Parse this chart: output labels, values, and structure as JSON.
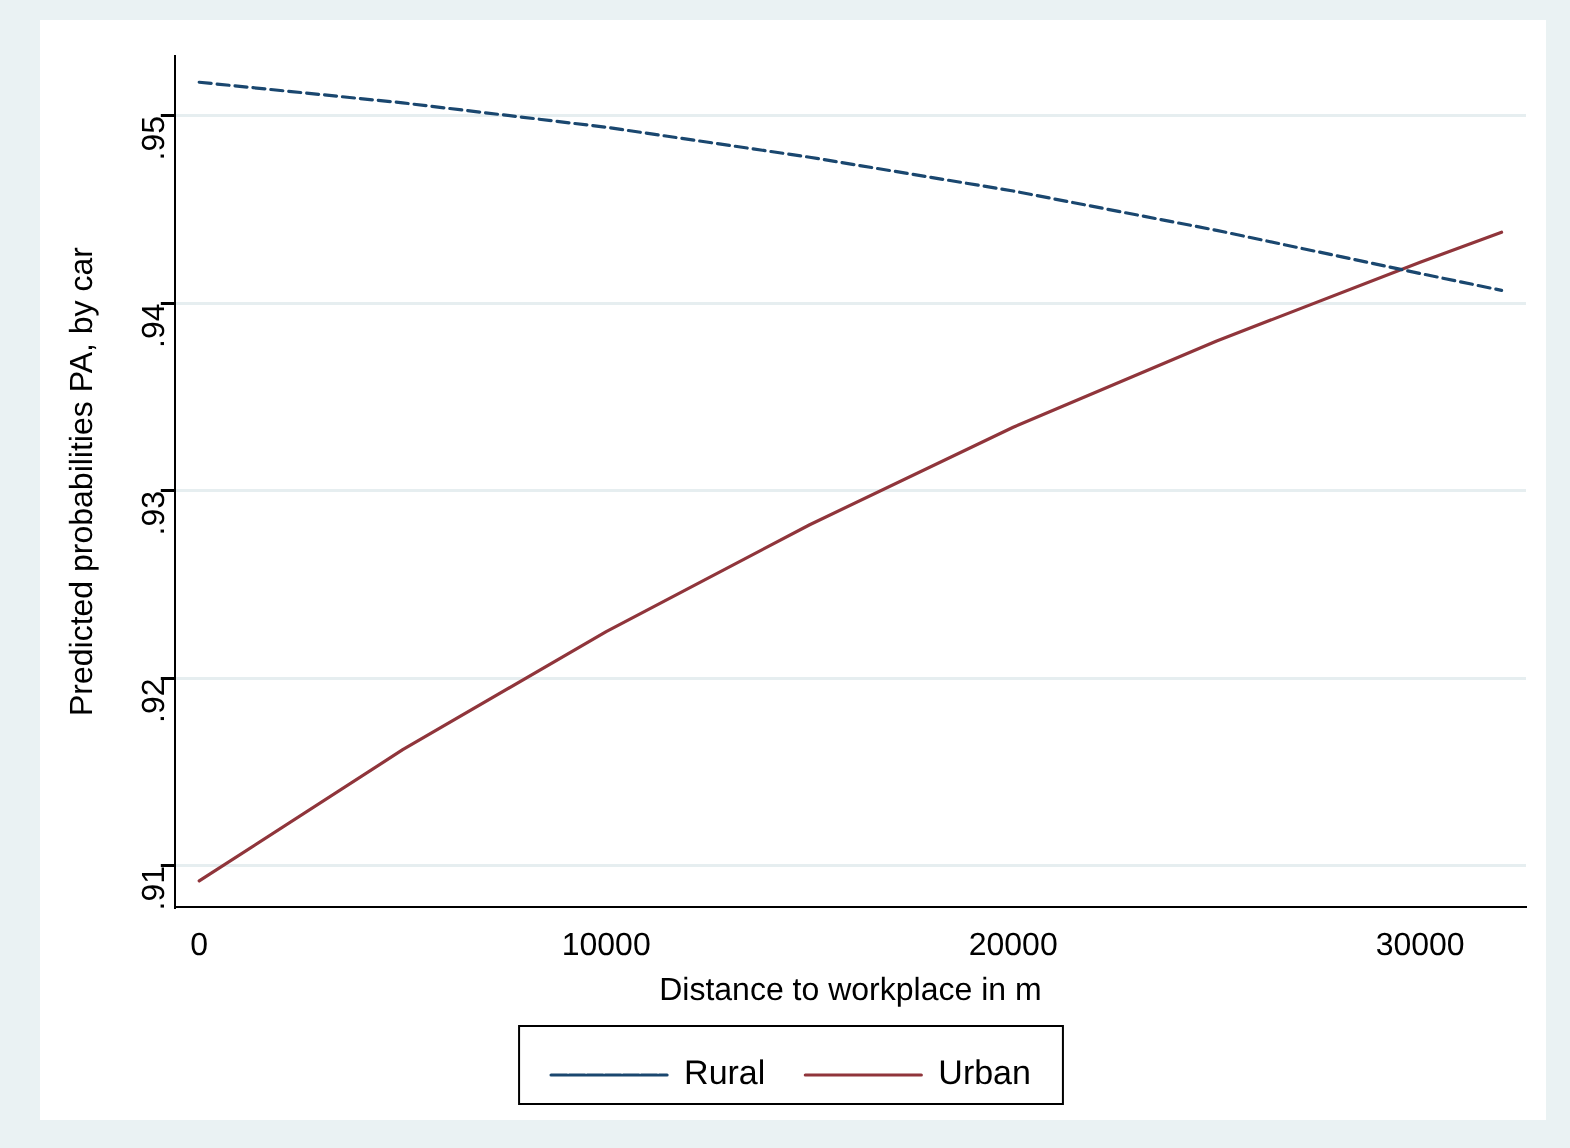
{
  "chart_data": {
    "type": "line",
    "xlabel": "Distance to workplace in m",
    "ylabel": "Predicted probabilities PA, by car",
    "x": [
      0,
      5000,
      10000,
      15000,
      20000,
      25000,
      30000,
      32000
    ],
    "series": [
      {
        "name": "Rural",
        "color": "#1a476f",
        "line_style": "dashed",
        "values": [
          0.9518,
          0.9507,
          0.9494,
          0.9478,
          0.946,
          0.9439,
          0.9416,
          0.9407
        ]
      },
      {
        "name": "Urban",
        "color": "#90353b",
        "line_style": "solid",
        "values": [
          0.9092,
          0.9162,
          0.9225,
          0.9282,
          0.9334,
          0.938,
          0.9422,
          0.9438
        ]
      }
    ],
    "xlim": [
      -600,
      32600
    ],
    "xticks": [
      0,
      10000,
      20000,
      30000
    ],
    "ylim": [
      0.9078,
      0.9532
    ],
    "yticks": [
      {
        "value": 0.91,
        "label": ".91"
      },
      {
        "value": 0.92,
        "label": ".92"
      },
      {
        "value": 0.93,
        "label": ".93"
      },
      {
        "value": 0.94,
        "label": ".94"
      },
      {
        "value": 0.95,
        "label": ".95"
      }
    ],
    "grid": "y",
    "legend": "bottom",
    "marker": "none"
  }
}
